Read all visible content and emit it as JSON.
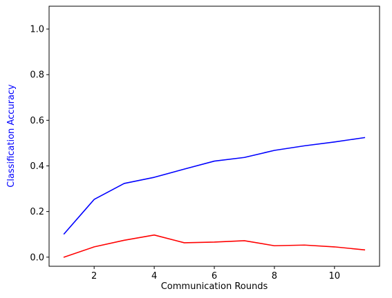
{
  "chart_data": {
    "type": "line",
    "title": "",
    "xlabel": "Communication Rounds",
    "ylabel": "Classification Accuracy",
    "ylabel_color": "#0000ff",
    "xlim": [
      0.5,
      11.5
    ],
    "ylim": [
      -0.04,
      1.1
    ],
    "x_ticks": [
      2,
      4,
      6,
      8,
      10
    ],
    "x_tick_labels": [
      "2",
      "4",
      "6",
      "8",
      "10"
    ],
    "y_ticks": [
      0.0,
      0.2,
      0.4,
      0.6,
      0.8,
      1.0
    ],
    "y_tick_labels": [
      "0.0",
      "0.2",
      "0.4",
      "0.6",
      "0.8",
      "1.0"
    ],
    "grid": false,
    "legend": "none",
    "x": [
      1,
      2,
      3,
      4,
      5,
      6,
      7,
      8,
      9,
      10,
      11
    ],
    "series": [
      {
        "color": "#0000ff",
        "values": [
          0.102,
          0.253,
          0.323,
          0.35,
          0.386,
          0.421,
          0.437,
          0.468,
          0.488,
          0.505,
          0.524
        ]
      },
      {
        "color": "#ff0000",
        "values": [
          0.0,
          0.045,
          0.074,
          0.097,
          0.063,
          0.066,
          0.072,
          0.05,
          0.053,
          0.045,
          0.032
        ]
      }
    ]
  }
}
